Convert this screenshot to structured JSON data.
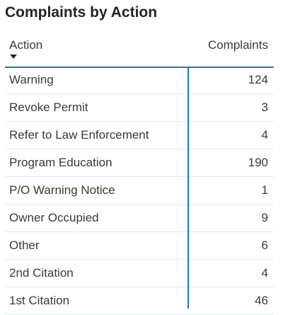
{
  "visual": {
    "title": "Complaints by Action",
    "columns": {
      "action": "Action",
      "complaints": "Complaints"
    },
    "sort": {
      "column": "Action",
      "direction": "descending",
      "icon": "sort-desc-icon"
    },
    "rows": [
      {
        "action": "Warning",
        "complaints": "124"
      },
      {
        "action": "Revoke Permit",
        "complaints": "3"
      },
      {
        "action": "Refer to Law Enforcement",
        "complaints": "4"
      },
      {
        "action": "Program Education",
        "complaints": "190"
      },
      {
        "action": "P/O Warning Notice",
        "complaints": "1"
      },
      {
        "action": "Owner Occupied",
        "complaints": "9"
      },
      {
        "action": "Other",
        "complaints": "6"
      },
      {
        "action": "2nd Citation",
        "complaints": "4"
      },
      {
        "action": "1st Citation",
        "complaints": "46"
      }
    ],
    "colors": {
      "accent": "#1f77c4",
      "text": "#3b3a39",
      "title": "#252423",
      "gridline": "#dde8f3"
    }
  }
}
